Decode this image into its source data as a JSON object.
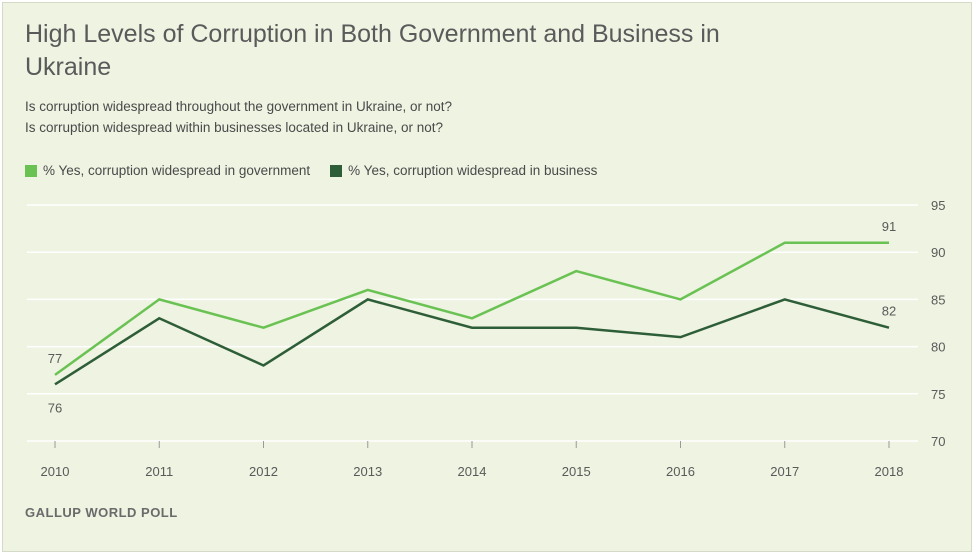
{
  "title": "High Levels of Corruption in Both Government and Business in Ukraine",
  "subtitle_lines": [
    "Is corruption widespread throughout the government in Ukraine, or not?",
    "Is corruption widespread within businesses located in Ukraine, or not?"
  ],
  "source": "GALLUP WORLD POLL",
  "colors": {
    "government": "#6ac253",
    "business": "#2e5e38",
    "grid": "#ffffff",
    "background": "#eef3e2"
  },
  "chart_data": {
    "type": "line",
    "title": "High Levels of Corruption in Both Government and Business in Ukraine",
    "x": [
      "2010",
      "2011",
      "2012",
      "2013",
      "2014",
      "2015",
      "2016",
      "2017",
      "2018"
    ],
    "series": [
      {
        "name": "% Yes, corruption widespread in government",
        "key": "government",
        "values": [
          77,
          85,
          82,
          86,
          83,
          88,
          85,
          91,
          91
        ]
      },
      {
        "name": "% Yes, corruption widespread in business",
        "key": "business",
        "values": [
          76,
          83,
          78,
          85,
          82,
          82,
          81,
          85,
          82
        ]
      }
    ],
    "yticks": [
      "70",
      "75",
      "80",
      "85",
      "90",
      "95"
    ],
    "ylim": [
      70,
      95
    ],
    "grid": true,
    "legend": "top-left",
    "annotations": [
      {
        "series": "government",
        "index": 0,
        "text": "77",
        "placement": "above"
      },
      {
        "series": "business",
        "index": 0,
        "text": "76",
        "placement": "below"
      },
      {
        "series": "government",
        "index": 8,
        "text": "91",
        "placement": "above"
      },
      {
        "series": "business",
        "index": 8,
        "text": "82",
        "placement": "above"
      }
    ]
  }
}
